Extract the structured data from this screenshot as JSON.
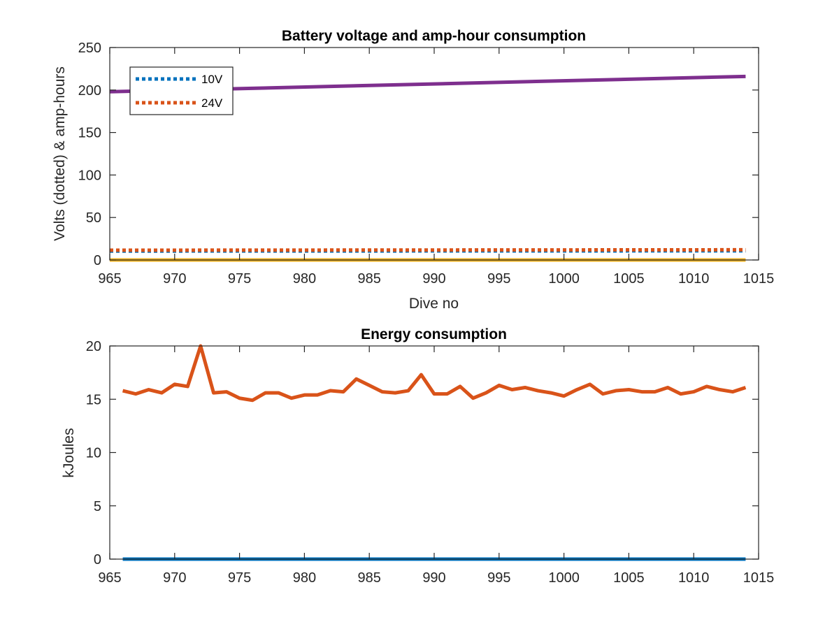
{
  "chart_data": [
    {
      "type": "line",
      "title": "Battery voltage and amp-hour consumption",
      "xlabel": "Dive no",
      "ylabel": "Volts (dotted) & amp-hours",
      "xlim": [
        965,
        1015
      ],
      "ylim": [
        0,
        250
      ],
      "xticks": [
        965,
        970,
        975,
        980,
        985,
        990,
        995,
        1000,
        1005,
        1010,
        1015
      ],
      "yticks": [
        0,
        50,
        100,
        150,
        200,
        250
      ],
      "grid": false,
      "legend_position": "top-left",
      "series": [
        {
          "name": "10V",
          "style": "dotted",
          "color": "#0072BD",
          "x": [
            965,
            1014
          ],
          "y": [
            10.5,
            10.8
          ]
        },
        {
          "name": "24V",
          "style": "dotted",
          "color": "#D95319",
          "x": [
            965,
            1014
          ],
          "y": [
            11.5,
            12
          ]
        },
        {
          "style": "solid",
          "color": "#7E2F8E",
          "x": [
            965,
            1014
          ],
          "y": [
            198,
            216
          ]
        },
        {
          "style": "solid",
          "color": "#EDB120",
          "x": [
            965,
            1014
          ],
          "y": [
            0,
            0
          ]
        }
      ]
    },
    {
      "type": "line",
      "title": "Energy consumption",
      "xlabel": "",
      "ylabel": "kJoules",
      "xlim": [
        965,
        1015
      ],
      "ylim": [
        0,
        20
      ],
      "xticks": [
        965,
        970,
        975,
        980,
        985,
        990,
        995,
        1000,
        1005,
        1010,
        1015
      ],
      "yticks": [
        0,
        5,
        10,
        15,
        20
      ],
      "grid": false,
      "series": [
        {
          "style": "solid",
          "color": "#D95319",
          "x": [
            966,
            967,
            968,
            969,
            970,
            971,
            972,
            973,
            974,
            975,
            976,
            977,
            978,
            979,
            980,
            981,
            982,
            983,
            984,
            985,
            986,
            987,
            988,
            989,
            990,
            991,
            992,
            993,
            994,
            995,
            996,
            997,
            998,
            999,
            1000,
            1001,
            1002,
            1003,
            1004,
            1005,
            1006,
            1007,
            1008,
            1009,
            1010,
            1011,
            1012,
            1013,
            1014
          ],
          "y": [
            15.8,
            15.5,
            15.9,
            15.6,
            16.4,
            16.2,
            20.0,
            15.6,
            15.7,
            15.1,
            14.9,
            15.6,
            15.6,
            15.1,
            15.4,
            15.4,
            15.8,
            15.7,
            16.9,
            16.3,
            15.7,
            15.6,
            15.8,
            17.3,
            15.5,
            15.5,
            16.2,
            15.1,
            15.6,
            16.3,
            15.9,
            16.1,
            15.8,
            15.6,
            15.3,
            15.9,
            16.4,
            15.5,
            15.8,
            15.9,
            15.7,
            15.7,
            16.1,
            15.5,
            15.7,
            16.2,
            15.9,
            15.7,
            16.1
          ]
        },
        {
          "style": "solid",
          "color": "#0072BD",
          "x": [
            966,
            1014
          ],
          "y": [
            0,
            0
          ]
        }
      ]
    }
  ]
}
